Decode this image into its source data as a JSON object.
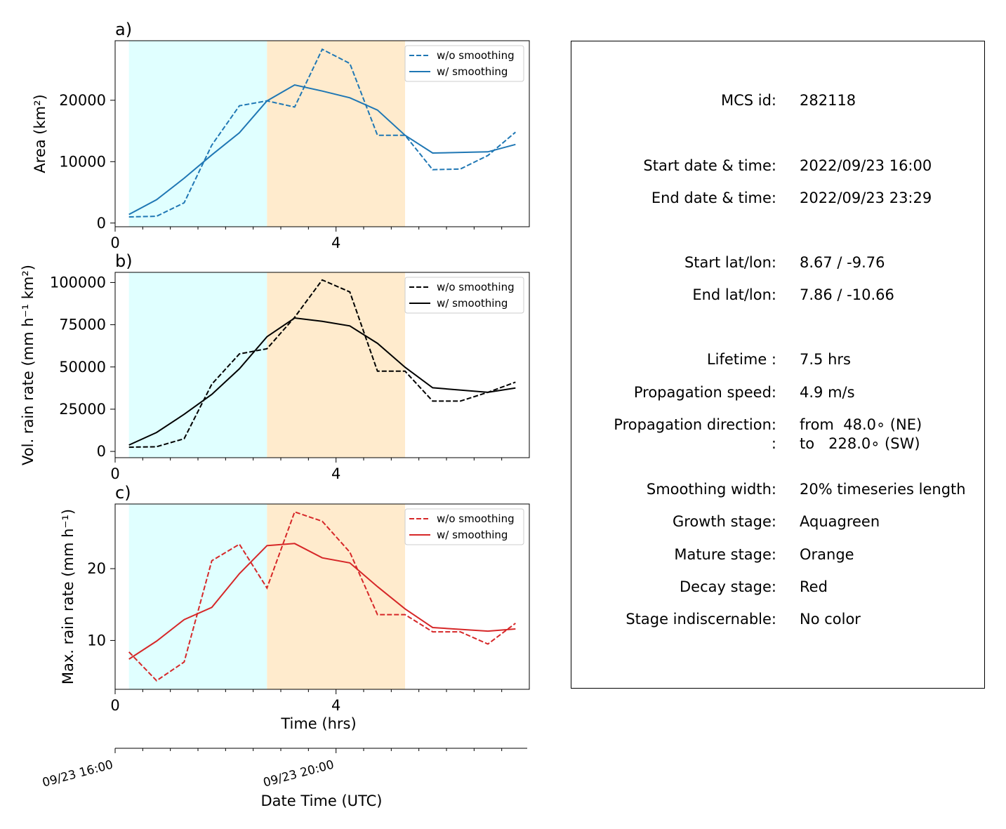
{
  "colors": {
    "growth": "#e0ffff",
    "mature": "#ffebcd",
    "area_line": "#1f77b4",
    "vol_line": "#000000",
    "max_line": "#d62728"
  },
  "chart_data": [
    {
      "type": "line",
      "panel_label": "a)",
      "ylabel": "Area  (km²)",
      "xlim": [
        0,
        7.5
      ],
      "ylim": [
        -600,
        29700
      ],
      "yticks": [
        0,
        10000,
        20000
      ],
      "ytick_labels": [
        "0",
        "10000",
        "20000"
      ],
      "xticks": [
        0,
        4
      ],
      "xtick_labels": [
        "0",
        "4"
      ],
      "stages": [
        {
          "name": "Aquagreen",
          "from": 0.25,
          "to": 2.75
        },
        {
          "name": "Orange",
          "from": 2.75,
          "to": 5.25
        }
      ],
      "legend_position": "upper right",
      "x": [
        0.25,
        0.75,
        1.25,
        1.75,
        2.25,
        2.75,
        3.25,
        3.75,
        4.25,
        4.75,
        5.25,
        5.75,
        6.25,
        6.75,
        7.25
      ],
      "series": [
        {
          "name": "w/o smoothing",
          "style": "dashed",
          "values": [
            1000,
            1100,
            3300,
            12700,
            19100,
            19900,
            18900,
            28300,
            26000,
            14300,
            14300,
            8700,
            8800,
            11000,
            14800
          ]
        },
        {
          "name": "w/ smoothing",
          "style": "solid",
          "x": [
            0.25,
            0.75,
            1.25,
            1.75,
            2.25,
            2.75,
            3.25,
            3.75,
            4.25,
            4.75,
            5.25,
            5.75,
            6.75,
            7.25
          ],
          "values": [
            1400,
            3800,
            7300,
            11100,
            14700,
            19900,
            22500,
            21500,
            20400,
            18400,
            14300,
            11400,
            11600,
            12800
          ]
        }
      ]
    },
    {
      "type": "line",
      "panel_label": "b)",
      "ylabel": "Vol. rain rate (mm h⁻¹ km²)",
      "xlim": [
        0,
        7.5
      ],
      "ylim": [
        -3700,
        106000
      ],
      "yticks": [
        0,
        25000,
        50000,
        75000,
        100000
      ],
      "ytick_labels": [
        "0",
        "25000",
        "50000",
        "75000",
        "100000"
      ],
      "xticks": [
        0,
        4
      ],
      "xtick_labels": [
        "0",
        "4"
      ],
      "stages": [
        {
          "name": "Aquagreen",
          "from": 0.25,
          "to": 2.75
        },
        {
          "name": "Orange",
          "from": 2.75,
          "to": 5.25
        }
      ],
      "legend_position": "upper right",
      "x": [
        0.25,
        0.75,
        1.25,
        1.75,
        2.25,
        2.75,
        3.25,
        3.75,
        4.25,
        4.75,
        5.25,
        5.75,
        6.25,
        6.75,
        7.25
      ],
      "series": [
        {
          "name": "w/o smoothing",
          "style": "dashed",
          "values": [
            2500,
            2800,
            7500,
            39800,
            57700,
            60800,
            79400,
            101500,
            94400,
            47500,
            47500,
            29800,
            29800,
            35000,
            41000
          ]
        },
        {
          "name": "w/ smoothing",
          "style": "solid",
          "x": [
            0.25,
            0.75,
            1.25,
            1.75,
            2.25,
            2.75,
            3.25,
            3.75,
            4.25,
            4.75,
            5.25,
            5.75,
            6.75,
            7.25
          ],
          "values": [
            3800,
            11200,
            22000,
            33800,
            48900,
            67900,
            79000,
            77000,
            74300,
            64000,
            49800,
            37700,
            35000,
            37500
          ]
        }
      ]
    },
    {
      "type": "line",
      "panel_label": "c)",
      "ylabel": "Max. rain rate  (mm h⁻¹)",
      "xlabel": "Time (hrs)",
      "xlim": [
        0,
        7.5
      ],
      "ylim": [
        3.2,
        29.0
      ],
      "yticks": [
        10,
        20
      ],
      "ytick_labels": [
        "10",
        "20"
      ],
      "xticks": [
        0,
        4
      ],
      "xtick_labels": [
        "0",
        "4"
      ],
      "stages": [
        {
          "name": "Aquagreen",
          "from": 0.25,
          "to": 2.75
        },
        {
          "name": "Orange",
          "from": 2.75,
          "to": 5.25
        }
      ],
      "legend_position": "upper right",
      "x": [
        0.25,
        0.75,
        1.25,
        1.75,
        2.25,
        2.75,
        3.25,
        3.75,
        4.25,
        4.75,
        5.25,
        5.75,
        6.25,
        6.75,
        7.25
      ],
      "series": [
        {
          "name": "w/o smoothing",
          "style": "dashed",
          "values": [
            8.4,
            4.4,
            7.0,
            21.1,
            23.4,
            17.3,
            27.9,
            26.6,
            22.3,
            13.6,
            13.6,
            11.2,
            11.2,
            9.5,
            12.4
          ]
        },
        {
          "name": "w/ smoothing",
          "style": "solid",
          "x": [
            0.25,
            0.75,
            1.25,
            1.75,
            2.25,
            2.75,
            3.25,
            3.75,
            4.25,
            4.75,
            5.25,
            5.75,
            6.75,
            7.25
          ],
          "values": [
            7.4,
            9.9,
            12.9,
            14.6,
            19.3,
            23.2,
            23.5,
            21.5,
            20.8,
            17.5,
            14.4,
            11.8,
            11.3,
            11.6
          ]
        }
      ]
    },
    {
      "type": "axis",
      "xlabel": "Date Time (UTC)",
      "xlim": [
        0,
        7.5
      ],
      "xticks": [
        0,
        4
      ],
      "xtick_labels": [
        "09/23 16:00",
        "09/23 20:00"
      ]
    }
  ],
  "info": {
    "rows": [
      {
        "label": "MCS id:",
        "value": "282118"
      },
      {
        "label": "Start date & time:",
        "value": "2022/09/23 16:00"
      },
      {
        "label": "End date & time:",
        "value": "2022/09/23 23:29"
      },
      {
        "label": "Start lat/lon:",
        "value": "8.67 / -9.76"
      },
      {
        "label": "End lat/lon:",
        "value": "7.86 / -10.66"
      },
      {
        "label": "Lifetime :",
        "value": "7.5 hrs"
      },
      {
        "label": "Propagation speed:",
        "value": "4.9 m/s"
      },
      {
        "label": "Propagation direction:",
        "value": "from  48.0∘ (NE)"
      },
      {
        "label": ":",
        "value": "to   228.0∘ (SW)"
      },
      {
        "label": "Smoothing width:",
        "value": "20% timeseries length"
      },
      {
        "label": "Growth stage:",
        "value": "Aquagreen"
      },
      {
        "label": "Mature stage:",
        "value": "Orange"
      },
      {
        "label": "Decay stage:",
        "value": "Red"
      },
      {
        "label": "Stage indiscernable:",
        "value": "No color"
      }
    ]
  }
}
